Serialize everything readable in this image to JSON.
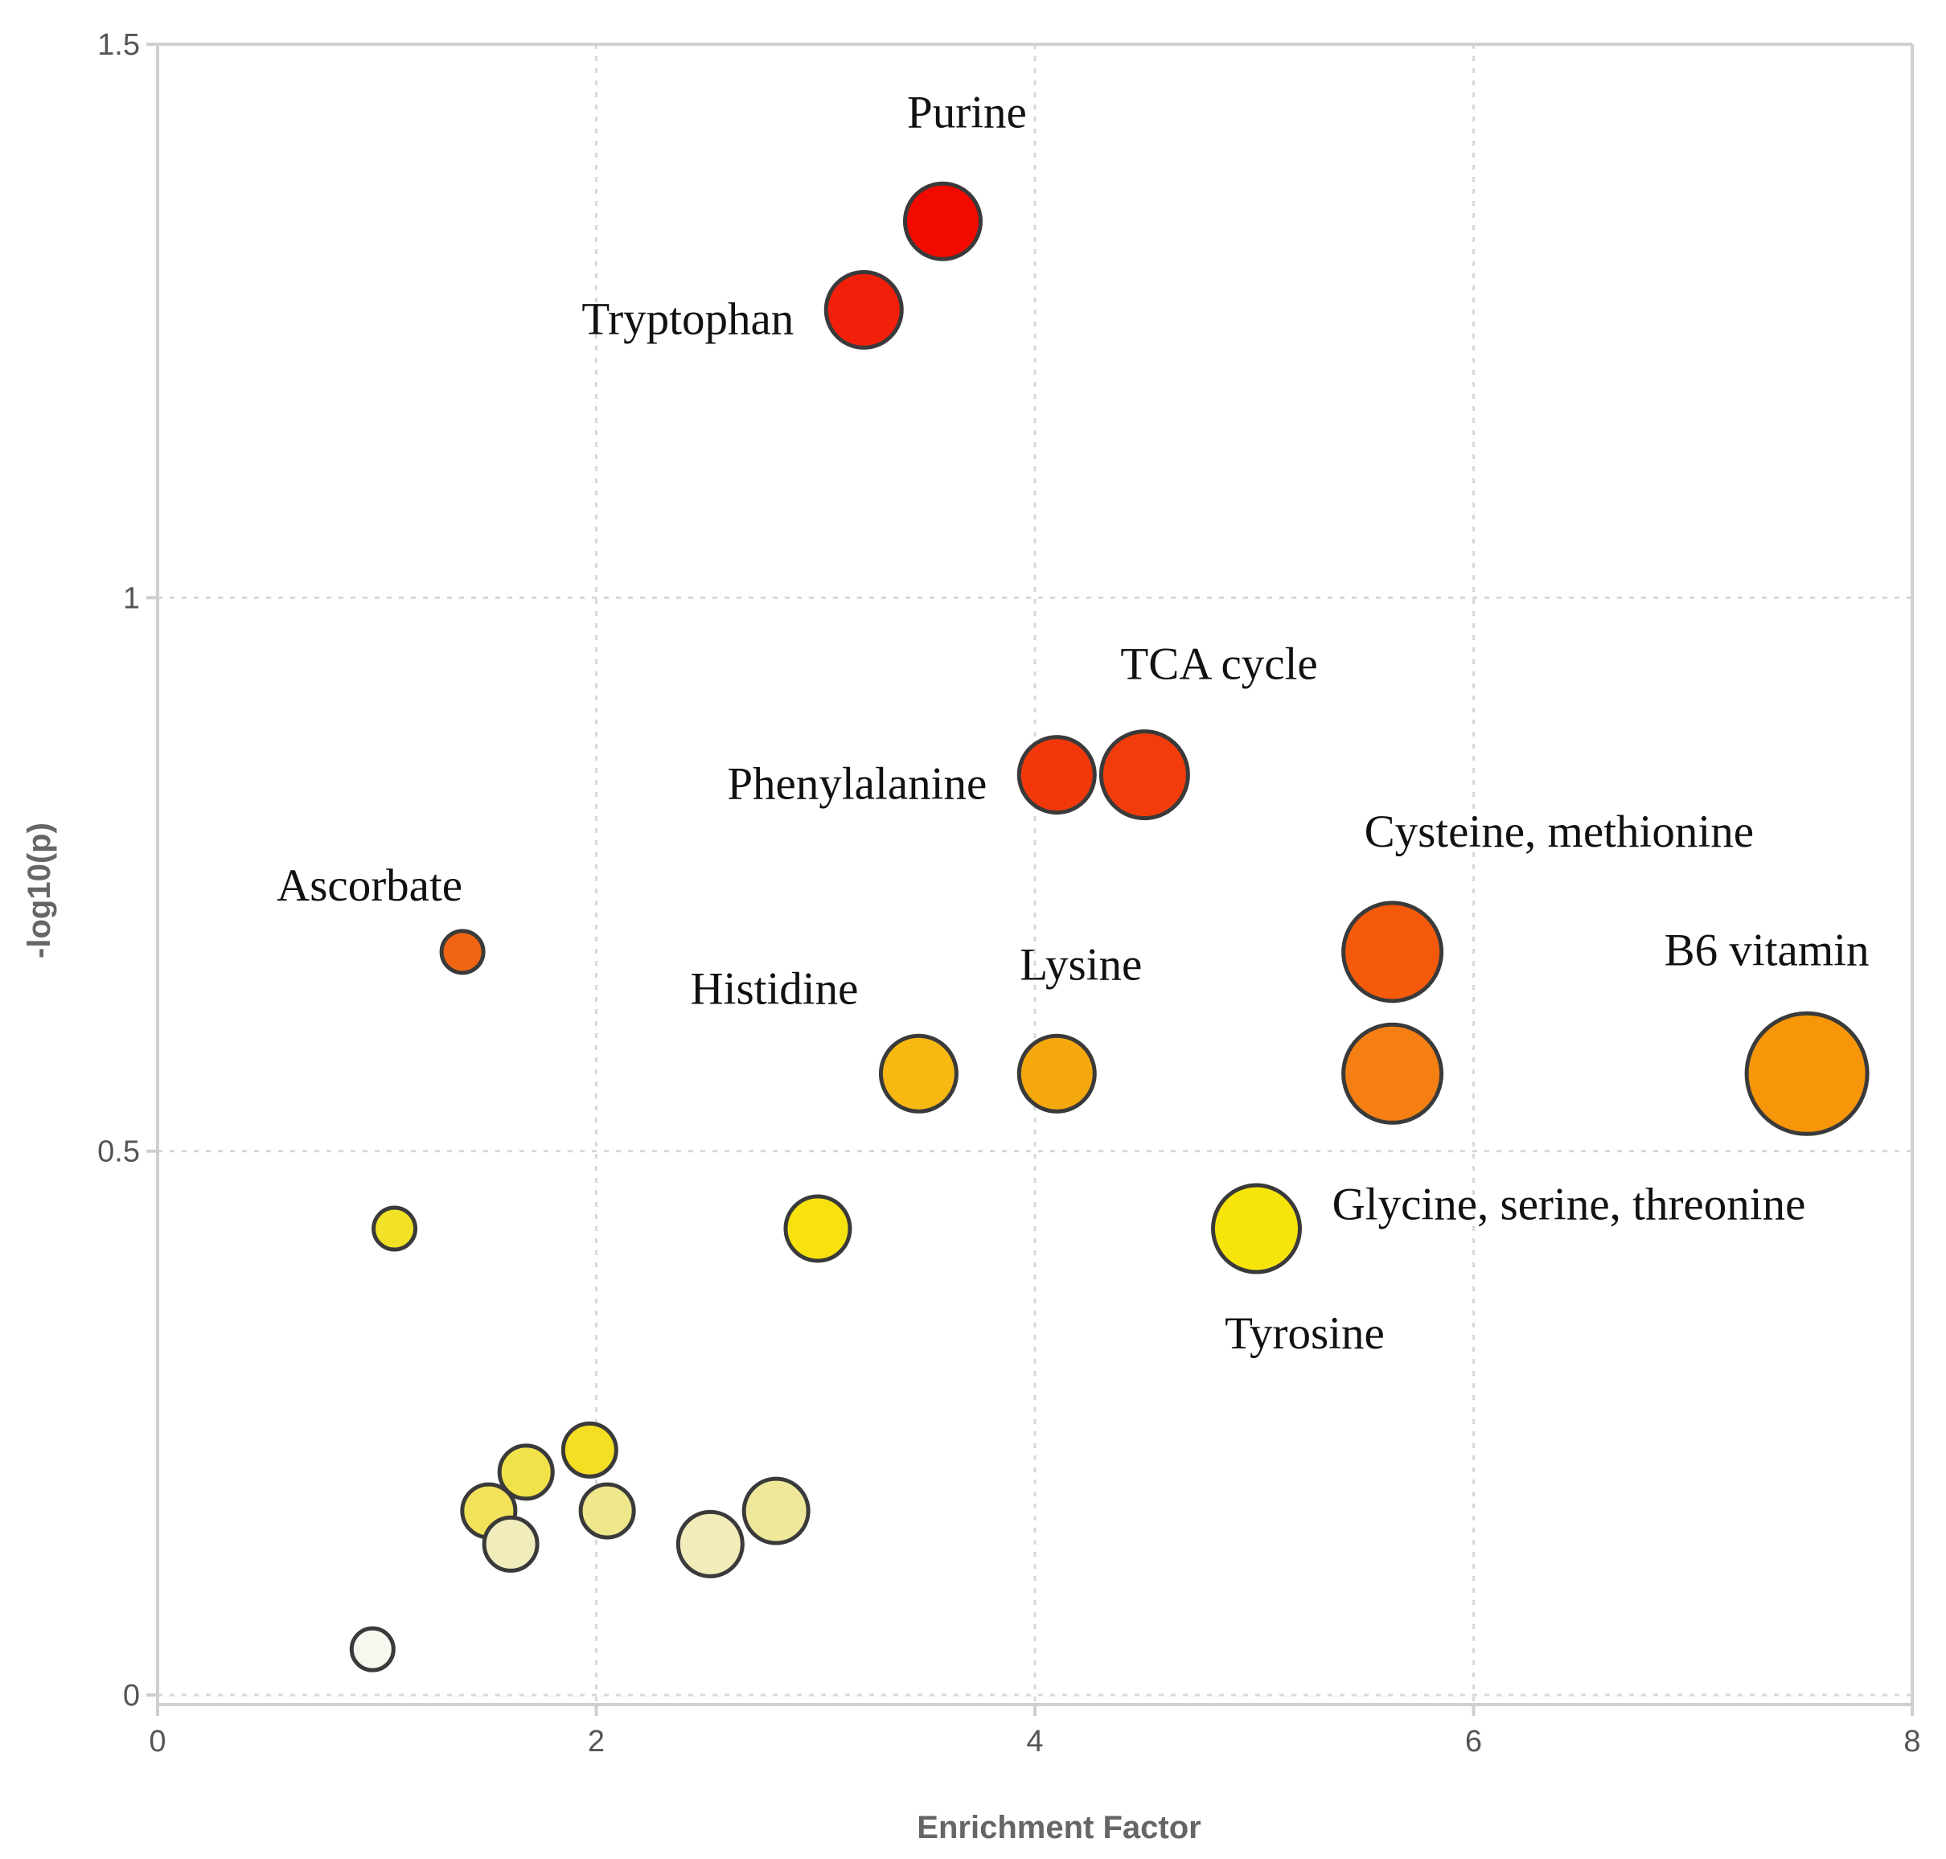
{
  "chart_data": {
    "type": "scatter",
    "title": "",
    "xlabel": "Enrichment Factor",
    "ylabel": "-log10(p)",
    "xlim": [
      0,
      8
    ],
    "ylim": [
      0,
      1.5
    ],
    "xticks": [
      0,
      2,
      4,
      6,
      8
    ],
    "yticks": [
      0,
      0.5,
      1,
      1.5
    ],
    "ytick_labels": [
      "0",
      "0.5",
      "1",
      "1.5"
    ],
    "xtick_labels": [
      "0",
      "2",
      "4",
      "6",
      "8"
    ],
    "grid": true,
    "points": [
      {
        "label": "Purine",
        "x": 3.58,
        "y": 1.34,
        "size": 5,
        "color": "#f20a00",
        "label_pos": "above"
      },
      {
        "label": "Tryptophan",
        "x": 3.22,
        "y": 1.26,
        "size": 5,
        "color": "#f2200a",
        "label_pos": "left"
      },
      {
        "label": "TCA cycle",
        "x": 4.5,
        "y": 0.84,
        "size": 6,
        "color": "#f23c0c",
        "label_pos": "above-right"
      },
      {
        "label": "Phenylalanine",
        "x": 4.1,
        "y": 0.84,
        "size": 5,
        "color": "#f2380a",
        "label_pos": "left"
      },
      {
        "label": "Cysteine, methionine",
        "x": 5.63,
        "y": 0.68,
        "size": 7,
        "color": "#f55a0a",
        "label_pos": "above-right"
      },
      {
        "label": "Ascorbate",
        "x": 1.39,
        "y": 0.68,
        "size": 2,
        "color": "#f06412",
        "label_pos": "above-left"
      },
      {
        "label": "B6 vitamin",
        "x": 7.52,
        "y": 0.57,
        "size": 9,
        "color": "#f79608",
        "label_pos": "above"
      },
      {
        "label": "Glycine, serine, threonine",
        "x": 5.63,
        "y": 0.57,
        "size": 7,
        "color": "#f57f12",
        "label_pos": "below-right"
      },
      {
        "label": "Lysine",
        "x": 4.1,
        "y": 0.57,
        "size": 5,
        "color": "#f5a80c",
        "label_pos": "above"
      },
      {
        "label": "Histidine",
        "x": 3.47,
        "y": 0.57,
        "size": 5,
        "color": "#f7b812",
        "label_pos": "above-left"
      },
      {
        "label": "Tyrosine",
        "x": 5.01,
        "y": 0.43,
        "size": 6,
        "color": "#f7e40a",
        "label_pos": "below"
      },
      {
        "label": "",
        "x": 3.01,
        "y": 0.43,
        "size": 4,
        "color": "#f7e20e",
        "label_pos": "none"
      },
      {
        "label": "",
        "x": 1.08,
        "y": 0.43,
        "size": 2,
        "color": "#f2e227",
        "label_pos": "none"
      },
      {
        "label": "",
        "x": 1.97,
        "y": 0.23,
        "size": 3,
        "color": "#f5df22",
        "label_pos": "none"
      },
      {
        "label": "",
        "x": 1.68,
        "y": 0.21,
        "size": 3,
        "color": "#f2e24a",
        "label_pos": "none"
      },
      {
        "label": "",
        "x": 1.51,
        "y": 0.175,
        "size": 3,
        "color": "#f2e25a",
        "label_pos": "none"
      },
      {
        "label": "",
        "x": 2.05,
        "y": 0.175,
        "size": 3,
        "color": "#efe78c",
        "label_pos": "none"
      },
      {
        "label": "",
        "x": 2.82,
        "y": 0.175,
        "size": 4,
        "color": "#efe89a",
        "label_pos": "none"
      },
      {
        "label": "",
        "x": 1.61,
        "y": 0.145,
        "size": 3,
        "color": "#f1ecbc",
        "label_pos": "none"
      },
      {
        "label": "",
        "x": 2.52,
        "y": 0.145,
        "size": 4,
        "color": "#f1ecb9",
        "label_pos": "none"
      },
      {
        "label": "",
        "x": 0.98,
        "y": 0.05,
        "size": 2,
        "color": "#f7f6ef",
        "label_pos": "none"
      }
    ]
  }
}
